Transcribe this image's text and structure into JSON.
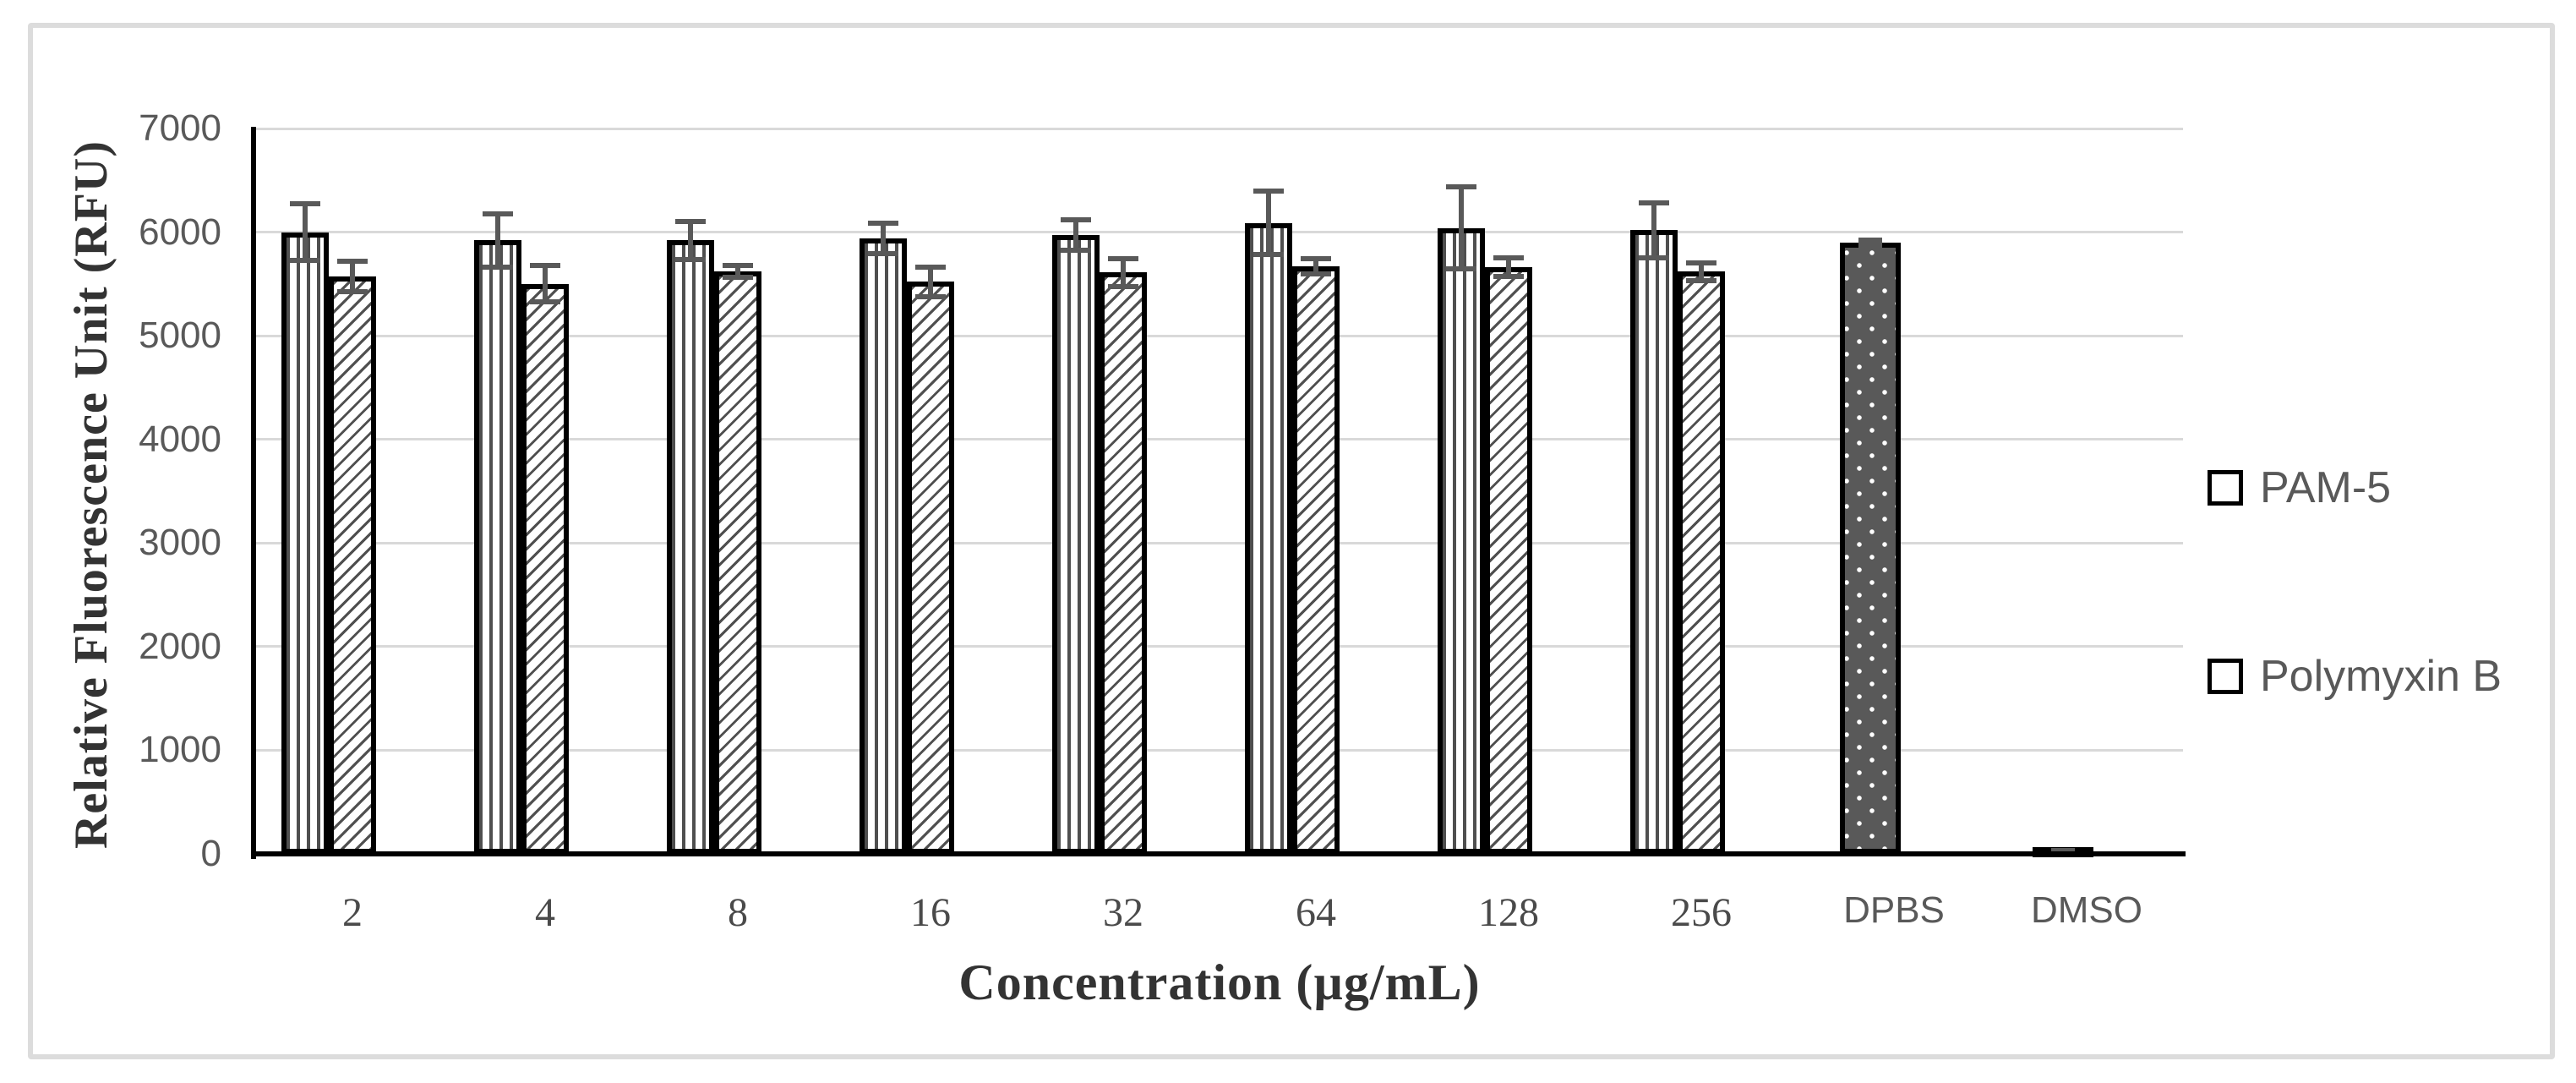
{
  "chart_data": {
    "type": "bar",
    "title": "",
    "xlabel": "Concentration (µg/mL)",
    "ylabel": "Relative Fluorescence Unit (RFU)",
    "ylim": [
      0,
      7000
    ],
    "yticks": [
      0,
      1000,
      2000,
      3000,
      4000,
      5000,
      6000,
      7000
    ],
    "grid": true,
    "legend_position": "right",
    "categories": [
      "2",
      "4",
      "8",
      "16",
      "32",
      "64",
      "128",
      "256",
      "DPBS",
      "DMSO"
    ],
    "series": [
      {
        "name": "PAM-5",
        "pattern": "vertical-stripes",
        "values": [
          6000,
          5920,
          5920,
          5940,
          5970,
          6090,
          6040,
          6020,
          5900,
          40
        ],
        "errors": [
          300,
          280,
          210,
          170,
          170,
          330,
          420,
          290,
          50,
          20
        ]
      },
      {
        "name": "Polymyxin B",
        "pattern": "diagonal-stripes",
        "values": [
          5570,
          5500,
          5620,
          5520,
          5610,
          5670,
          5660,
          5620,
          null,
          null
        ],
        "errors": [
          170,
          200,
          80,
          170,
          160,
          100,
          115,
          110,
          null,
          null
        ]
      }
    ],
    "control_patterns": {
      "DPBS": "dots-dark",
      "DMSO": "solid-dark"
    },
    "legend": [
      {
        "label": "PAM-5",
        "swatch": "vertical-stripes"
      },
      {
        "label": "Polymyxin B",
        "swatch": "diagonal-stripes"
      }
    ]
  },
  "colors": {
    "bar_outline": "#000000",
    "stripe": "#4f4f4f",
    "dots_background": "#595959",
    "error_bar": "#595959",
    "gridline": "#d9d9d9",
    "axis": "#000000",
    "tick_label": "#595959",
    "axis_title": "#333333",
    "legend_label": "#595959",
    "frame_border": "#dcdcdc"
  }
}
